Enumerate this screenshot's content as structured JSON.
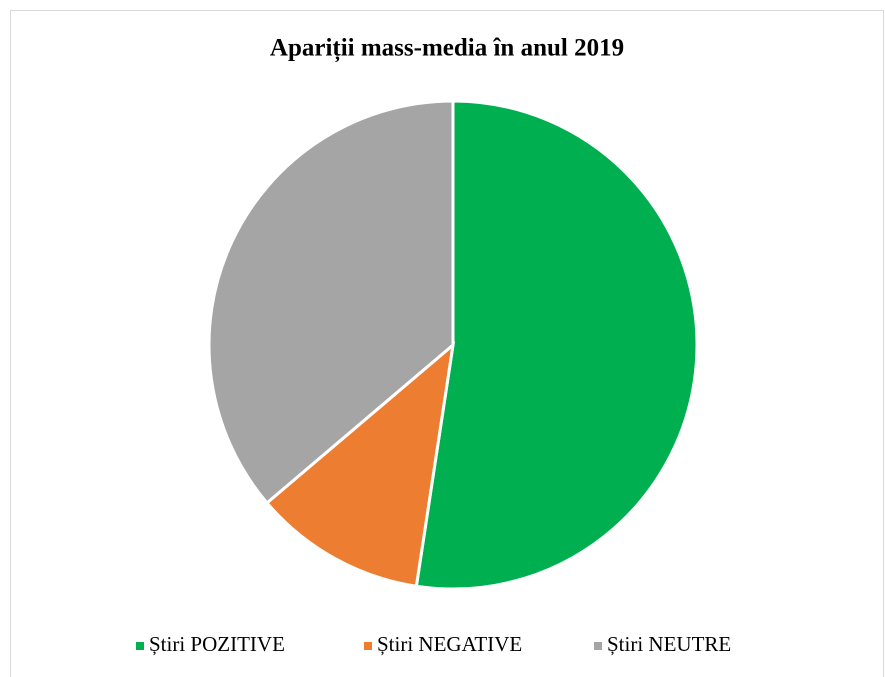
{
  "chart_data": {
    "type": "pie",
    "title": "Apariții mass-media în anul 2019",
    "categories": [
      "Știri POZITIVE",
      "Știri NEGATIVE",
      "Știri NEUTRE"
    ],
    "values": [
      52.4,
      11.4,
      36.2
    ],
    "colors": [
      "#00b050",
      "#ed7d31",
      "#a5a5a5"
    ],
    "legend": "bottom"
  }
}
